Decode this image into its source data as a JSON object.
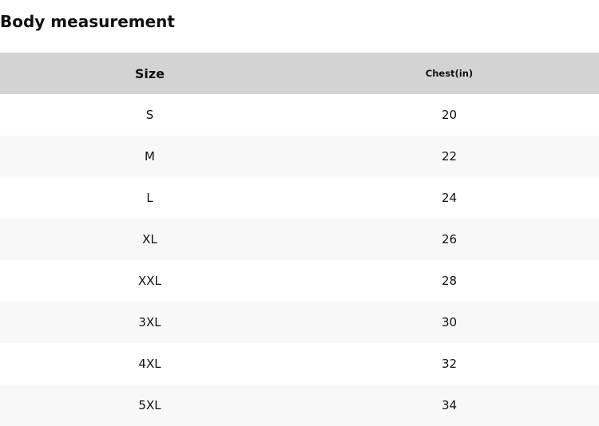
{
  "title": "Body measurement",
  "headers": [
    "Size",
    "Chest(in)"
  ],
  "rows": [
    [
      "S",
      "20"
    ],
    [
      "M",
      "22"
    ],
    [
      "L",
      "24"
    ],
    [
      "XL",
      "26"
    ],
    [
      "XXL",
      "28"
    ],
    [
      "3XL",
      "30"
    ],
    [
      "4XL",
      "32"
    ],
    [
      "5XL",
      "34"
    ]
  ]
}
